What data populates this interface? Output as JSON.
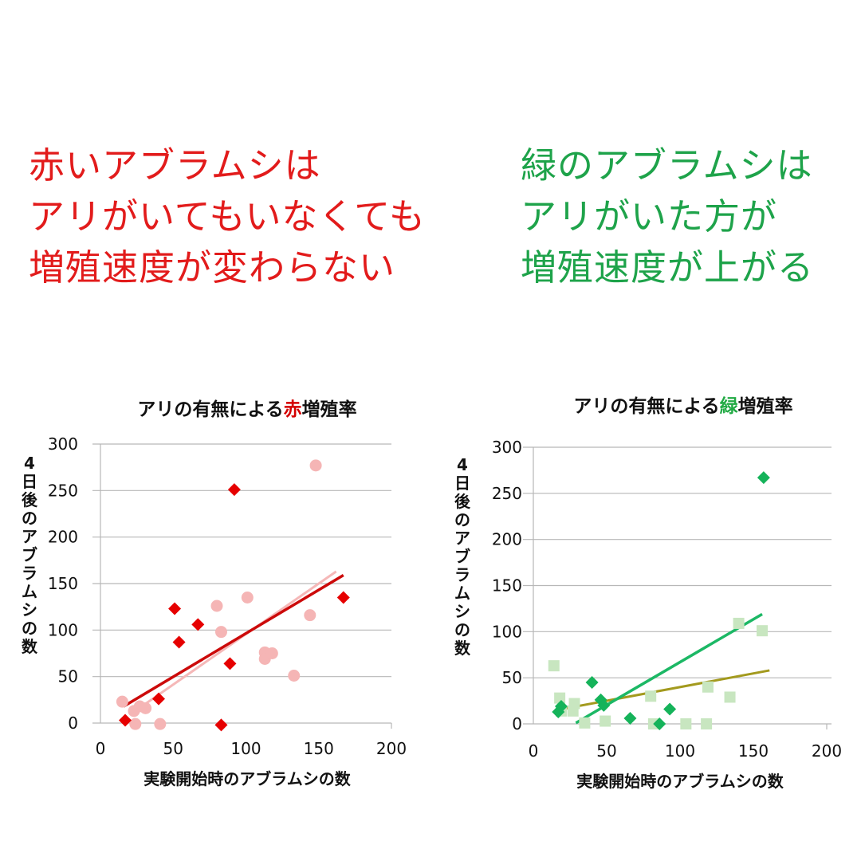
{
  "headline_left": {
    "color": "#e21b1b",
    "lines": [
      "赤いアブラムシは",
      "アリがいてもいなくても",
      "増殖速度が変わらない"
    ]
  },
  "headline_right": {
    "color": "#1ea34a",
    "lines": [
      "緑のアブラムシは",
      "アリがいた方が",
      "増殖速度が上がる"
    ]
  },
  "chart_data": [
    {
      "type": "scatter",
      "title_prefix": "アリの有無による",
      "title_highlight": "赤",
      "title_suffix": "増殖率",
      "highlight_color": "#d40000",
      "xlabel": "実験開始時のアブラムシの数",
      "ylabel": "4日後のアブラムシの数",
      "xlim": [
        0,
        200
      ],
      "ylim": [
        0,
        300
      ],
      "xticks": [
        0,
        50,
        100,
        150,
        200
      ],
      "yticks": [
        0,
        50,
        100,
        150,
        200,
        250,
        300
      ],
      "grid": "horizontal",
      "series": [
        {
          "marker": "diamond",
          "color": "#e60000",
          "points": [
            [
              17,
              3
            ],
            [
              40,
              26
            ],
            [
              51,
              123
            ],
            [
              54,
              87
            ],
            [
              67,
              106
            ],
            [
              89,
              64
            ],
            [
              92,
              251
            ],
            [
              83,
              -2
            ],
            [
              167,
              135
            ]
          ],
          "trend": {
            "x": [
              16,
              167
            ],
            "y": [
              18,
              159
            ],
            "color": "#cc0a0a"
          }
        },
        {
          "marker": "circle",
          "color": "#f5b5b5",
          "points": [
            [
              15,
              23
            ],
            [
              23,
              13
            ],
            [
              24,
              -1
            ],
            [
              27,
              18
            ],
            [
              31,
              16
            ],
            [
              41,
              -1
            ],
            [
              80,
              126
            ],
            [
              83,
              98
            ],
            [
              101,
              135
            ],
            [
              113,
              76
            ],
            [
              113,
              69
            ],
            [
              118,
              75
            ],
            [
              133,
              51
            ],
            [
              144,
              116
            ],
            [
              148,
              277
            ]
          ],
          "trend": {
            "x": [
              22,
              162
            ],
            "y": [
              11,
              163
            ],
            "color": "#f5b8b8"
          }
        }
      ]
    },
    {
      "type": "scatter",
      "title_prefix": "アリの有無による",
      "title_highlight": "緑",
      "title_suffix": "増殖率",
      "highlight_color": "#22aa44",
      "xlabel": "実験開始時のアブラムシの数",
      "ylabel": "4日後のアブラムシの数",
      "xlim": [
        0,
        200
      ],
      "ylim": [
        0,
        300
      ],
      "xticks": [
        0,
        50,
        100,
        150,
        200
      ],
      "yticks": [
        0,
        50,
        100,
        150,
        200,
        250,
        300
      ],
      "grid": "horizontal",
      "series": [
        {
          "marker": "diamond",
          "color": "#15b35a",
          "points": [
            [
              17,
              13
            ],
            [
              19,
              19
            ],
            [
              40,
              45
            ],
            [
              46,
              26
            ],
            [
              48,
              20
            ],
            [
              66,
              6
            ],
            [
              86,
              0
            ],
            [
              93,
              16
            ],
            [
              157,
              267
            ]
          ],
          "trend": {
            "x": [
              29,
              156
            ],
            "y": [
              1,
              119
            ],
            "color": "#1cb865"
          }
        },
        {
          "marker": "square",
          "color": "#c8e6c0",
          "points": [
            [
              14,
              63
            ],
            [
              18,
              28
            ],
            [
              19,
              14
            ],
            [
              28,
              22
            ],
            [
              27,
              14
            ],
            [
              35,
              1
            ],
            [
              49,
              3
            ],
            [
              80,
              30
            ],
            [
              82,
              0
            ],
            [
              104,
              0
            ],
            [
              118,
              0
            ],
            [
              119,
              40
            ],
            [
              134,
              29
            ],
            [
              140,
              109
            ],
            [
              156,
              101
            ]
          ],
          "trend": {
            "x": [
              16,
              161
            ],
            "y": [
              15,
              58
            ],
            "color": "#a39a1e"
          }
        }
      ]
    }
  ]
}
